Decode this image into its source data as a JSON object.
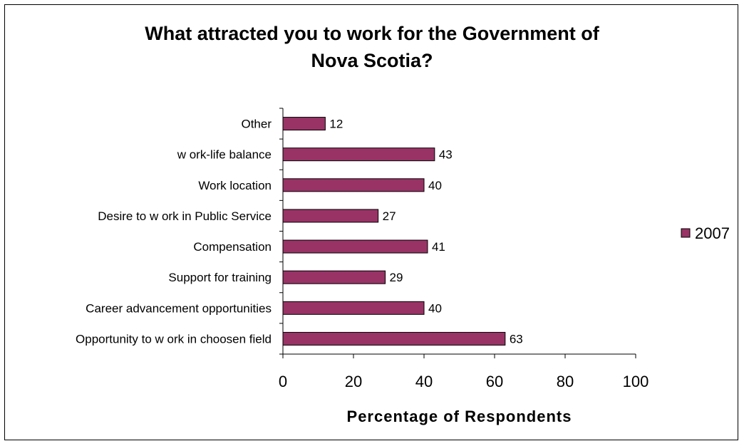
{
  "chart_data": {
    "type": "bar",
    "orientation": "horizontal",
    "title_lines": [
      "What attracted you to work for the Government of",
      "Nova Scotia?"
    ],
    "categories": [
      "Opportunity to w ork in choosen field",
      "Career advancement opportunities",
      "Support for training",
      "Compensation",
      "Desire to w ork in Public Service",
      "Work location",
      "w ork-life balance",
      "Other"
    ],
    "series": [
      {
        "name": "2007",
        "values": [
          63,
          40,
          29,
          41,
          27,
          40,
          43,
          12
        ],
        "color": "#993366"
      }
    ],
    "xlabel": "Percentage of Respondents",
    "xlim": [
      0,
      100
    ],
    "xticks": [
      0,
      20,
      40,
      60,
      80,
      100
    ],
    "grid": false,
    "legend_position": "right"
  }
}
